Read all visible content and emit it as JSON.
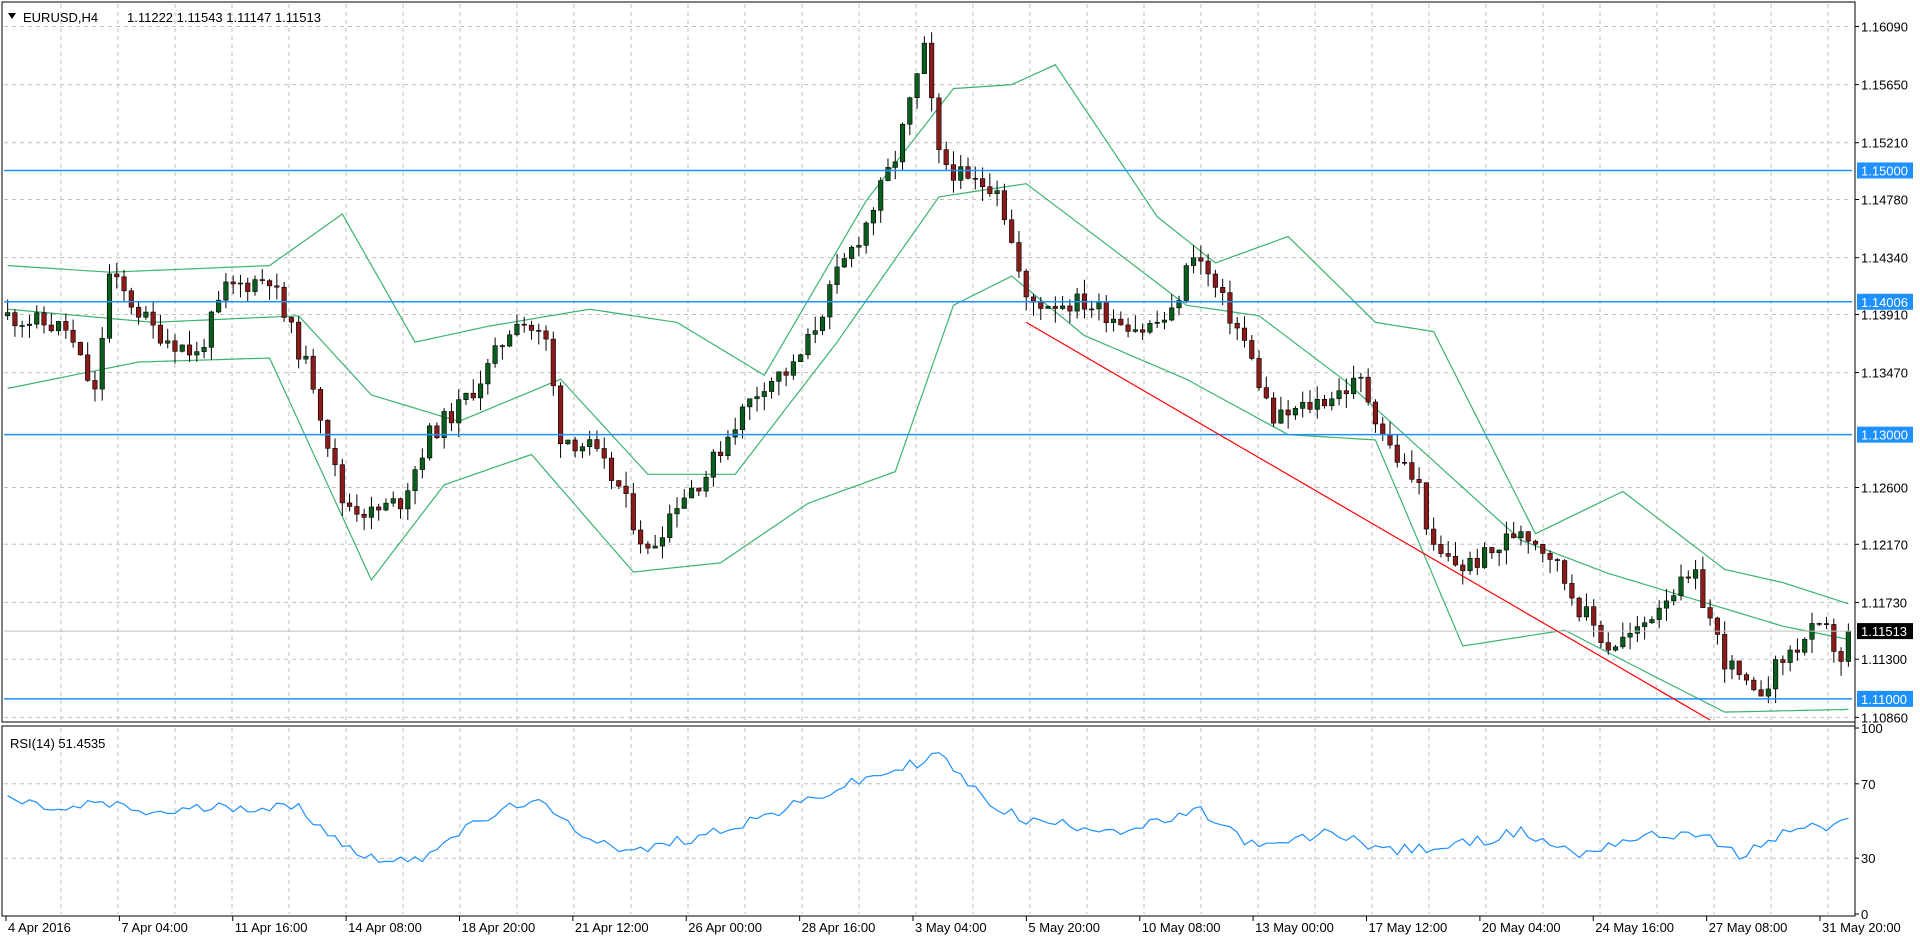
{
  "header": {
    "symbol": "EURUSD,H4",
    "ohlc": "1.11222 1.11543 1.11147 1.11513"
  },
  "rsi_header": "RSI(14) 51.4535",
  "colors": {
    "background": "#ffffff",
    "grid": "#c0c0c0",
    "bull_body": "#0b5d1e",
    "bear_body": "#8b1a1a",
    "wick": "#000000",
    "bollinger": "#3cb371",
    "hline": "#1e90ff",
    "trendline": "#ff0000",
    "rsi_line": "#1e90ff",
    "price_tag": "#000000"
  },
  "chart_data": [
    {
      "type": "candlestick",
      "symbol": "EURUSD",
      "timeframe": "H4",
      "ylim": [
        1.1084,
        1.1626
      ],
      "y_ticks": [
        "1.16090",
        "1.15650",
        "1.15210",
        "1.14780",
        "1.14340",
        "1.13910",
        "1.13470",
        "1.12600",
        "1.12170",
        "1.11730",
        "1.11300",
        "1.10860"
      ],
      "x_ticks": [
        "4 Apr 2016",
        "7 Apr 04:00",
        "11 Apr 16:00",
        "14 Apr 08:00",
        "18 Apr 20:00",
        "21 Apr 12:00",
        "26 Apr 00:00",
        "28 Apr 16:00",
        "3 May 04:00",
        "5 May 20:00",
        "10 May 08:00",
        "13 May 00:00",
        "17 May 12:00",
        "20 May 04:00",
        "24 May 16:00",
        "27 May 08:00",
        "31 May 20:00"
      ],
      "horizontal_levels": [
        {
          "value": 1.15,
          "label": "1.15000"
        },
        {
          "value": 1.14006,
          "label": "1.14006"
        },
        {
          "value": 1.13,
          "label": "1.13000"
        },
        {
          "value": 1.11,
          "label": "1.11000"
        }
      ],
      "current_price": {
        "value": 1.11513,
        "label": "1.11513"
      },
      "trendline": {
        "from": [
          140,
          1.1385
        ],
        "to": [
          234,
          1.1074
        ]
      },
      "close_path": [
        [
          0,
          1.139
        ],
        [
          8,
          1.138
        ],
        [
          12,
          1.133
        ],
        [
          14,
          1.142
        ],
        [
          20,
          1.138
        ],
        [
          26,
          1.136
        ],
        [
          30,
          1.141
        ],
        [
          36,
          1.142
        ],
        [
          38,
          1.139
        ],
        [
          42,
          1.134
        ],
        [
          46,
          1.125
        ],
        [
          50,
          1.124
        ],
        [
          54,
          1.125
        ],
        [
          58,
          1.13
        ],
        [
          62,
          1.132
        ],
        [
          66,
          1.135
        ],
        [
          70,
          1.139
        ],
        [
          74,
          1.137
        ],
        [
          76,
          1.13
        ],
        [
          80,
          1.129
        ],
        [
          84,
          1.126
        ],
        [
          88,
          1.121
        ],
        [
          92,
          1.125
        ],
        [
          96,
          1.127
        ],
        [
          100,
          1.131
        ],
        [
          104,
          1.134
        ],
        [
          108,
          1.135
        ],
        [
          110,
          1.137
        ],
        [
          114,
          1.142
        ],
        [
          118,
          1.146
        ],
        [
          122,
          1.151
        ],
        [
          126,
          1.159
        ],
        [
          128,
          1.151
        ],
        [
          132,
          1.149
        ],
        [
          136,
          1.149
        ],
        [
          140,
          1.14
        ],
        [
          144,
          1.14
        ],
        [
          148,
          1.14
        ],
        [
          152,
          1.139
        ],
        [
          156,
          1.138
        ],
        [
          160,
          1.139
        ],
        [
          163,
          1.144
        ],
        [
          166,
          1.141
        ],
        [
          170,
          1.137
        ],
        [
          174,
          1.131
        ],
        [
          178,
          1.132
        ],
        [
          182,
          1.133
        ],
        [
          186,
          1.134
        ],
        [
          190,
          1.129
        ],
        [
          194,
          1.126
        ],
        [
          196,
          1.121
        ],
        [
          200,
          1.12
        ],
        [
          204,
          1.121
        ],
        [
          208,
          1.123
        ],
        [
          212,
          1.121
        ],
        [
          216,
          1.117
        ],
        [
          220,
          1.114
        ],
        [
          224,
          1.115
        ],
        [
          228,
          1.118
        ],
        [
          232,
          1.119
        ],
        [
          236,
          1.113
        ],
        [
          240,
          1.11
        ],
        [
          244,
          1.113
        ],
        [
          248,
          1.115
        ],
        [
          250,
          1.115
        ],
        [
          252,
          1.113
        ],
        [
          253,
          1.11513
        ]
      ],
      "bollinger_bands": {
        "upper_path": [
          [
            0,
            1.1428
          ],
          [
            14,
            1.1423
          ],
          [
            36,
            1.1428
          ],
          [
            46,
            1.1467
          ],
          [
            56,
            1.137
          ],
          [
            66,
            1.1382
          ],
          [
            80,
            1.1395
          ],
          [
            92,
            1.1385
          ],
          [
            104,
            1.1345
          ],
          [
            118,
            1.1477
          ],
          [
            130,
            1.1562
          ],
          [
            138,
            1.1565
          ],
          [
            144,
            1.158
          ],
          [
            158,
            1.1465
          ],
          [
            166,
            1.143
          ],
          [
            176,
            1.145
          ],
          [
            188,
            1.1385
          ],
          [
            196,
            1.1378
          ],
          [
            210,
            1.1225
          ],
          [
            222,
            1.1257
          ],
          [
            236,
            1.1198
          ],
          [
            244,
            1.1188
          ],
          [
            253,
            1.1172
          ]
        ],
        "middle_path": [
          [
            0,
            1.1395
          ],
          [
            20,
            1.1385
          ],
          [
            40,
            1.139
          ],
          [
            50,
            1.133
          ],
          [
            62,
            1.131
          ],
          [
            76,
            1.1342
          ],
          [
            88,
            1.127
          ],
          [
            100,
            1.127
          ],
          [
            114,
            1.137
          ],
          [
            128,
            1.148
          ],
          [
            140,
            1.149
          ],
          [
            152,
            1.144
          ],
          [
            162,
            1.1398
          ],
          [
            172,
            1.139
          ],
          [
            184,
            1.134
          ],
          [
            196,
            1.128
          ],
          [
            208,
            1.122
          ],
          [
            220,
            1.1195
          ],
          [
            232,
            1.1175
          ],
          [
            244,
            1.1155
          ],
          [
            253,
            1.1145
          ]
        ],
        "lower_path": [
          [
            0,
            1.1335
          ],
          [
            18,
            1.1355
          ],
          [
            36,
            1.1358
          ],
          [
            50,
            1.119
          ],
          [
            60,
            1.1262
          ],
          [
            72,
            1.1285
          ],
          [
            86,
            1.1196
          ],
          [
            98,
            1.1203
          ],
          [
            110,
            1.1248
          ],
          [
            122,
            1.1272
          ],
          [
            130,
            1.1398
          ],
          [
            138,
            1.142
          ],
          [
            148,
            1.1375
          ],
          [
            162,
            1.1342
          ],
          [
            176,
            1.13
          ],
          [
            188,
            1.1296
          ],
          [
            200,
            1.114
          ],
          [
            214,
            1.1152
          ],
          [
            226,
            1.1118
          ],
          [
            236,
            1.109
          ],
          [
            253,
            1.1092
          ]
        ]
      }
    },
    {
      "type": "line",
      "name": "RSI(14)",
      "ylim": [
        0,
        100
      ],
      "y_ticks": [
        "100",
        "70",
        "30",
        "0"
      ],
      "reference_levels": [
        70,
        30
      ],
      "last_value": 51.4535,
      "path": [
        [
          0,
          62
        ],
        [
          8,
          55
        ],
        [
          12,
          60
        ],
        [
          20,
          54
        ],
        [
          30,
          58
        ],
        [
          40,
          57
        ],
        [
          48,
          32
        ],
        [
          56,
          28
        ],
        [
          60,
          40
        ],
        [
          68,
          55
        ],
        [
          72,
          62
        ],
        [
          78,
          45
        ],
        [
          86,
          33
        ],
        [
          96,
          43
        ],
        [
          106,
          55
        ],
        [
          116,
          70
        ],
        [
          124,
          80
        ],
        [
          128,
          86
        ],
        [
          134,
          62
        ],
        [
          140,
          50
        ],
        [
          146,
          48
        ],
        [
          154,
          45
        ],
        [
          164,
          55
        ],
        [
          172,
          35
        ],
        [
          182,
          44
        ],
        [
          190,
          34
        ],
        [
          198,
          36
        ],
        [
          208,
          44
        ],
        [
          216,
          32
        ],
        [
          222,
          40
        ],
        [
          232,
          44
        ],
        [
          238,
          31
        ],
        [
          246,
          47
        ],
        [
          250,
          46
        ],
        [
          253,
          51.45
        ]
      ]
    }
  ]
}
